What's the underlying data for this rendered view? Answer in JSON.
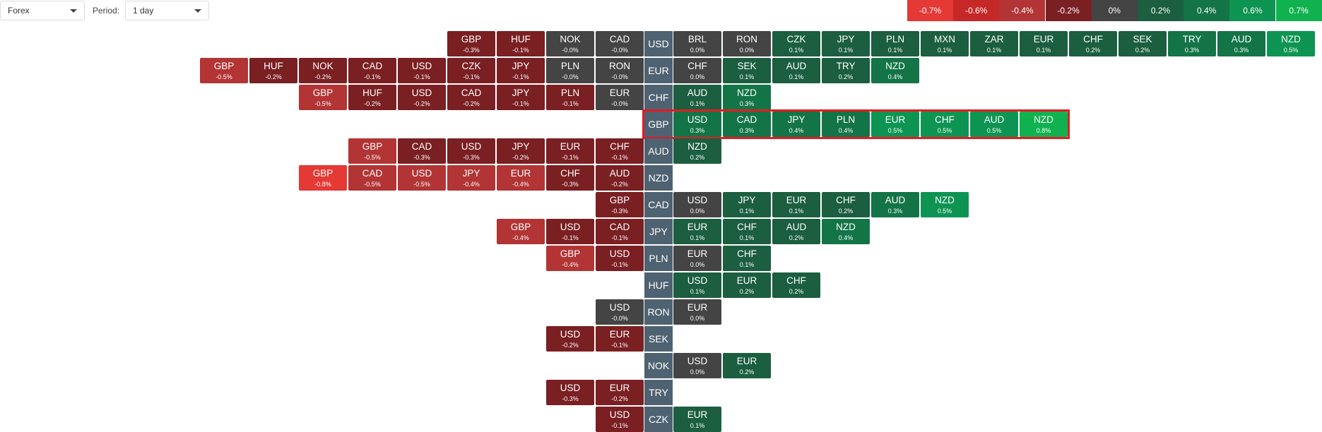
{
  "controls": {
    "market_value": "Forex",
    "period_label": "Period:",
    "period_value": "1 day"
  },
  "legend": [
    {
      "label": "-0.7%",
      "color": "#e53935"
    },
    {
      "label": "-0.6%",
      "color": "#c62828"
    },
    {
      "label": "-0.4%",
      "color": "#b23434"
    },
    {
      "label": "-0.2%",
      "color": "#7a1f22"
    },
    {
      "label": "0%",
      "color": "#444444"
    },
    {
      "label": "0.2%",
      "color": "#1b5e40"
    },
    {
      "label": "0.4%",
      "color": "#137447"
    },
    {
      "label": "0.6%",
      "color": "#0e9452"
    },
    {
      "label": "0.7%",
      "color": "#10b24f"
    }
  ],
  "colors": {
    "base": "#4e6271",
    "highlight_border": "#e31b23"
  },
  "highlighted_row": "GBP",
  "rows": [
    {
      "base": "USD",
      "left": [
        [
          "GBP",
          "-0.3%"
        ],
        [
          "HUF",
          "-0.1%"
        ],
        [
          "NOK",
          "-0.0%"
        ],
        [
          "CAD",
          "-0.0%"
        ]
      ],
      "right": [
        [
          "BRL",
          "0.0%"
        ],
        [
          "RON",
          "0.0%"
        ],
        [
          "CZK",
          "0.1%"
        ],
        [
          "JPY",
          "0.1%"
        ],
        [
          "PLN",
          "0.1%"
        ],
        [
          "MXN",
          "0.1%"
        ],
        [
          "ZAR",
          "0.1%"
        ],
        [
          "EUR",
          "0.1%"
        ],
        [
          "CHF",
          "0.2%"
        ],
        [
          "SEK",
          "0.2%"
        ],
        [
          "TRY",
          "0.3%"
        ],
        [
          "AUD",
          "0.3%"
        ],
        [
          "NZD",
          "0.5%"
        ]
      ]
    },
    {
      "base": "EUR",
      "left": [
        [
          "GBP",
          "-0.5%"
        ],
        [
          "HUF",
          "-0.2%"
        ],
        [
          "NOK",
          "-0.2%"
        ],
        [
          "CAD",
          "-0.1%"
        ],
        [
          "USD",
          "-0.1%"
        ],
        [
          "CZK",
          "-0.1%"
        ],
        [
          "JPY",
          "-0.1%"
        ],
        [
          "PLN",
          "-0.0%"
        ],
        [
          "RON",
          "-0.0%"
        ]
      ],
      "right": [
        [
          "CHF",
          "0.0%"
        ],
        [
          "SEK",
          "0.1%"
        ],
        [
          "AUD",
          "0.1%"
        ],
        [
          "TRY",
          "0.2%"
        ],
        [
          "NZD",
          "0.4%"
        ]
      ]
    },
    {
      "base": "CHF",
      "left": [
        [
          "GBP",
          "-0.5%"
        ],
        [
          "HUF",
          "-0.2%"
        ],
        [
          "USD",
          "-0.2%"
        ],
        [
          "CAD",
          "-0.2%"
        ],
        [
          "JPY",
          "-0.1%"
        ],
        [
          "PLN",
          "-0.1%"
        ],
        [
          "EUR",
          "-0.0%"
        ]
      ],
      "right": [
        [
          "AUD",
          "0.1%"
        ],
        [
          "NZD",
          "0.3%"
        ]
      ]
    },
    {
      "base": "GBP",
      "left": [],
      "right": [
        [
          "USD",
          "0.3%"
        ],
        [
          "CAD",
          "0.3%"
        ],
        [
          "JPY",
          "0.4%"
        ],
        [
          "PLN",
          "0.4%"
        ],
        [
          "EUR",
          "0.5%"
        ],
        [
          "CHF",
          "0.5%"
        ],
        [
          "AUD",
          "0.5%"
        ],
        [
          "NZD",
          "0.8%"
        ]
      ]
    },
    {
      "base": "AUD",
      "left": [
        [
          "GBP",
          "-0.5%"
        ],
        [
          "CAD",
          "-0.3%"
        ],
        [
          "USD",
          "-0.3%"
        ],
        [
          "JPY",
          "-0.2%"
        ],
        [
          "EUR",
          "-0.1%"
        ],
        [
          "CHF",
          "-0.1%"
        ]
      ],
      "right": [
        [
          "NZD",
          "0.2%"
        ]
      ]
    },
    {
      "base": "NZD",
      "left": [
        [
          "GBP",
          "-0.8%"
        ],
        [
          "CAD",
          "-0.5%"
        ],
        [
          "USD",
          "-0.5%"
        ],
        [
          "JPY",
          "-0.4%"
        ],
        [
          "EUR",
          "-0.4%"
        ],
        [
          "CHF",
          "-0.3%"
        ],
        [
          "AUD",
          "-0.2%"
        ]
      ],
      "right": []
    },
    {
      "base": "CAD",
      "left": [
        [
          "GBP",
          "-0.3%"
        ]
      ],
      "right": [
        [
          "USD",
          "0.0%"
        ],
        [
          "JPY",
          "0.1%"
        ],
        [
          "EUR",
          "0.1%"
        ],
        [
          "CHF",
          "0.2%"
        ],
        [
          "AUD",
          "0.3%"
        ],
        [
          "NZD",
          "0.5%"
        ]
      ]
    },
    {
      "base": "JPY",
      "left": [
        [
          "GBP",
          "-0.4%"
        ],
        [
          "USD",
          "-0.1%"
        ],
        [
          "CAD",
          "-0.1%"
        ]
      ],
      "right": [
        [
          "EUR",
          "0.1%"
        ],
        [
          "CHF",
          "0.1%"
        ],
        [
          "AUD",
          "0.2%"
        ],
        [
          "NZD",
          "0.4%"
        ]
      ]
    },
    {
      "base": "PLN",
      "left": [
        [
          "GBP",
          "-0.4%"
        ],
        [
          "USD",
          "-0.1%"
        ]
      ],
      "right": [
        [
          "EUR",
          "0.0%"
        ],
        [
          "CHF",
          "0.1%"
        ]
      ]
    },
    {
      "base": "HUF",
      "left": [],
      "right": [
        [
          "USD",
          "0.1%"
        ],
        [
          "EUR",
          "0.2%"
        ],
        [
          "CHF",
          "0.2%"
        ]
      ]
    },
    {
      "base": "RON",
      "left": [
        [
          "USD",
          "-0.0%"
        ]
      ],
      "right": [
        [
          "EUR",
          "0.0%"
        ]
      ]
    },
    {
      "base": "SEK",
      "left": [
        [
          "USD",
          "-0.2%"
        ],
        [
          "EUR",
          "-0.1%"
        ]
      ],
      "right": []
    },
    {
      "base": "NOK",
      "left": [],
      "right": [
        [
          "USD",
          "0.0%"
        ],
        [
          "EUR",
          "0.2%"
        ]
      ]
    },
    {
      "base": "TRY",
      "left": [
        [
          "USD",
          "-0.3%"
        ],
        [
          "EUR",
          "-0.2%"
        ]
      ],
      "right": []
    },
    {
      "base": "CZK",
      "left": [
        [
          "USD",
          "-0.1%"
        ]
      ],
      "right": [
        [
          "EUR",
          "0.1%"
        ]
      ]
    }
  ]
}
